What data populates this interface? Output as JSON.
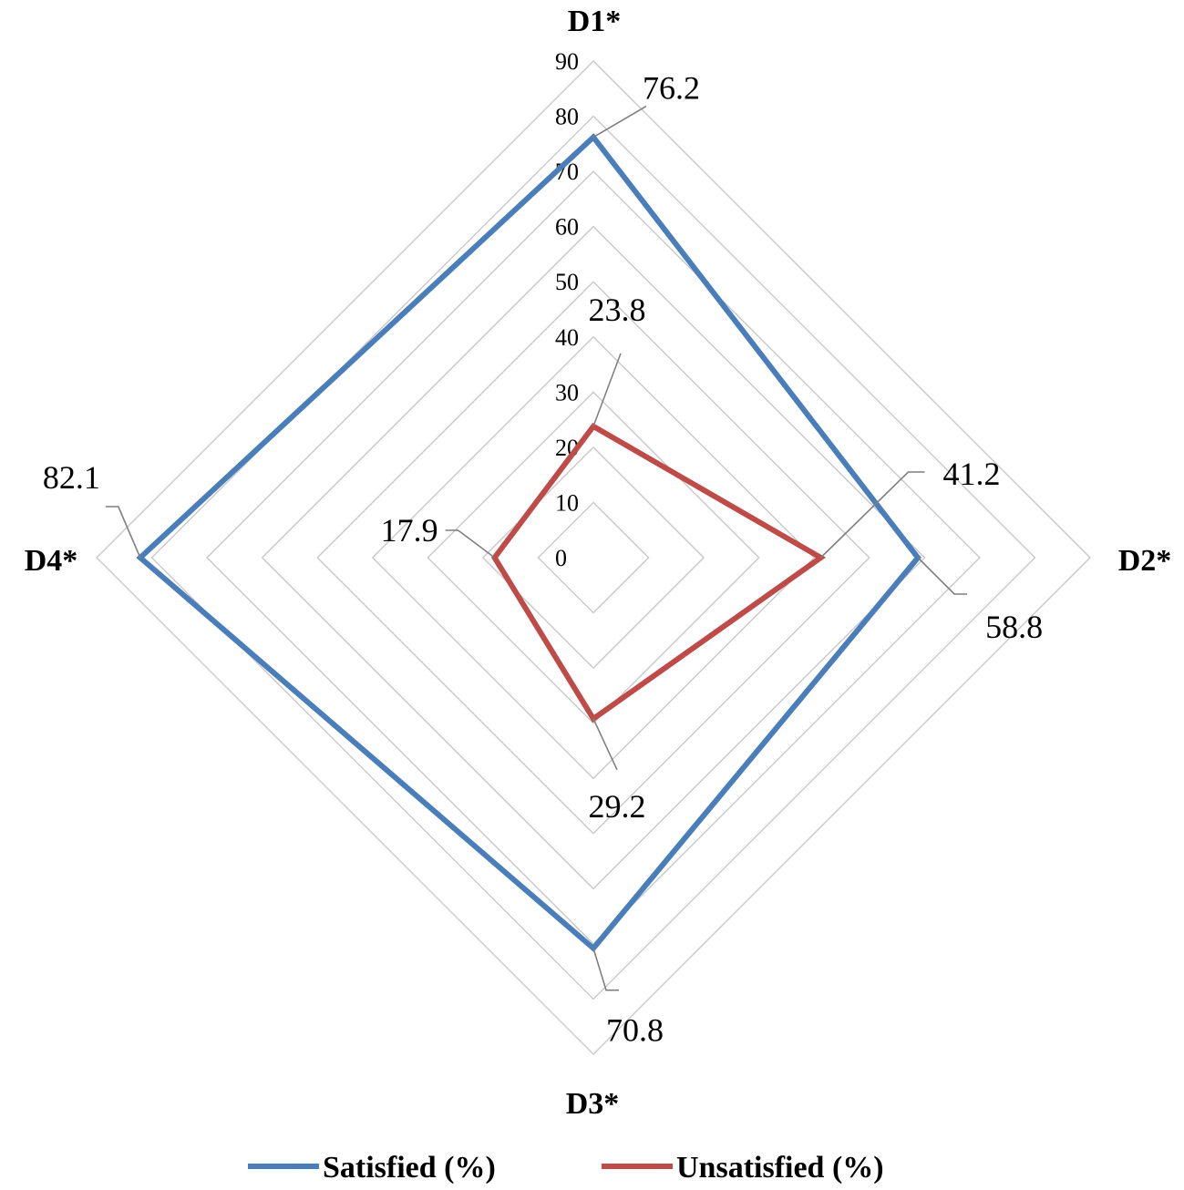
{
  "chart_data": {
    "type": "radar",
    "axes": [
      "D1*",
      "D2*",
      "D3*",
      "D4*"
    ],
    "r_ticks": [
      "0",
      "10",
      "20",
      "30",
      "40",
      "50",
      "60",
      "70",
      "80",
      "90"
    ],
    "r_range": [
      0,
      90
    ],
    "grid": true,
    "legend_position": "bottom",
    "series": [
      {
        "name": "Satisfied (%)",
        "color": "#4a7ebb",
        "values": [
          76.2,
          58.8,
          70.8,
          82.1
        ],
        "labels": [
          "76.2",
          "58.8",
          "70.8",
          "82.1"
        ]
      },
      {
        "name": "Unsatisfied (%)",
        "color": "#be4b48",
        "values": [
          23.8,
          41.2,
          29.2,
          17.9
        ],
        "labels": [
          "23.8",
          "41.2",
          "29.2",
          "17.9"
        ]
      }
    ]
  },
  "colors": {
    "grid": "#c8c8c8",
    "leader": "#7f7f7f"
  }
}
